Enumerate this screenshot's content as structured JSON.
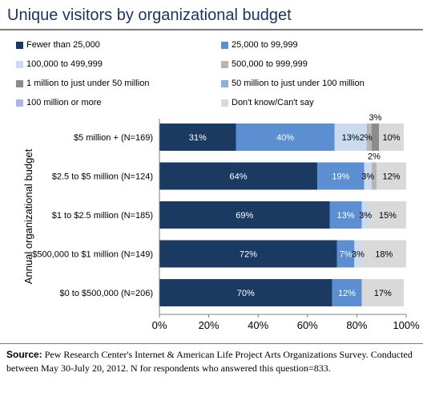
{
  "title": "Unique visitors by organizational budget",
  "source": {
    "label": "Source:",
    "text": " Pew Research Center's Internet & American Life Project Arts Organizations Survey. Conducted between May 30-July 20, 2012. N for respondents who answered this question=833."
  },
  "colors": {
    "Fewer than 25,000": "#1a3a62",
    "25,000 to 99,999": "#5b8fd1",
    "100,000 to 499,999": "#c9daf1",
    "500,000 to 999,999": "#b5b5b5",
    "1 million to just under 50 million": "#8c8c8c",
    "50 million to just under 100 million": "#8fb0d6",
    "100 million or more": "#aab7e8",
    "Don't know/Can't say": "#d9d9d9"
  },
  "chart_data": {
    "type": "bar",
    "orientation": "horizontal",
    "stacked": true,
    "ylabel": "Annual organizational budget",
    "xlim": [
      0,
      100
    ],
    "xticks": [
      "0%",
      "20%",
      "40%",
      "60%",
      "80%",
      "100%"
    ],
    "grid": false,
    "legend_position": "top",
    "categories": [
      "$5 million + (N=169)",
      "$2.5 to $5 million (N=124)",
      "$1 to $2.5 million (N=185)",
      "$500,000 to $1 million (N=149)",
      "$0 to $500,000 (N=206)"
    ],
    "series": [
      {
        "name": "Fewer than 25,000",
        "values": [
          31,
          64,
          69,
          72,
          70
        ],
        "labels": [
          "31%",
          "64%",
          "69%",
          "72%",
          "70%"
        ]
      },
      {
        "name": "25,000 to 99,999",
        "values": [
          40,
          19,
          13,
          7,
          12
        ],
        "labels": [
          "40%",
          "19%",
          "13%",
          "7%",
          "12%"
        ]
      },
      {
        "name": "100,000 to 499,999",
        "values": [
          13,
          3,
          3,
          3,
          0
        ],
        "labels": [
          "13%",
          "3%",
          "3%",
          "3%",
          ""
        ]
      },
      {
        "name": "500,000 to 999,999",
        "values": [
          2,
          2,
          0,
          0,
          0
        ],
        "labels": [
          "2%",
          "2%",
          "",
          "",
          ""
        ]
      },
      {
        "name": "1 million to just under 50 million",
        "values": [
          3,
          0,
          0,
          0,
          0
        ],
        "labels": [
          "3%",
          "",
          "",
          "",
          ""
        ]
      },
      {
        "name": "50 million to just under 100 million",
        "values": [
          0,
          0,
          0,
          0,
          0
        ],
        "labels": [
          "",
          "",
          "",
          "",
          ""
        ]
      },
      {
        "name": "100 million or more",
        "values": [
          0,
          0,
          0,
          0,
          0
        ],
        "labels": [
          "",
          "",
          "",
          "",
          ""
        ]
      },
      {
        "name": "Don't know/Can't say",
        "values": [
          10,
          12,
          15,
          18,
          17
        ],
        "labels": [
          "10%",
          "12%",
          "15%",
          "18%",
          "17%"
        ]
      }
    ]
  }
}
